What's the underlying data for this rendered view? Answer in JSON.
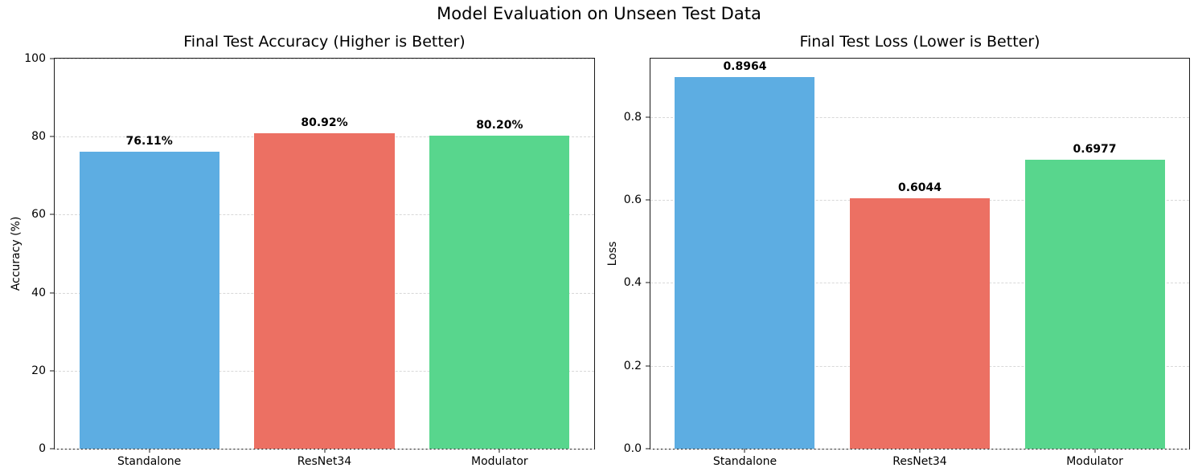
{
  "figure": {
    "title": "Model Evaluation on Unseen Test Data",
    "background": "#ffffff"
  },
  "palette": {
    "bar_colors": [
      "#5dade2",
      "#ec7063",
      "#58d68d"
    ],
    "grid_color": "#d8d8d8",
    "spine_color": "#1a1a1a",
    "text_color": "#000000"
  },
  "chart_data": [
    {
      "type": "bar",
      "title": "Final Test Accuracy (Higher is Better)",
      "categories": [
        "Standalone",
        "ResNet34",
        "Modulator"
      ],
      "values": [
        76.11,
        80.92,
        80.2
      ],
      "value_labels": [
        "76.11%",
        "80.92%",
        "80.20%"
      ],
      "xlabel": "",
      "ylabel": "Accuracy (%)",
      "ylim": [
        0,
        100
      ],
      "yticks": [
        0,
        20,
        40,
        60,
        80,
        100
      ],
      "ytick_labels": [
        "0",
        "20",
        "40",
        "60",
        "80",
        "100"
      ],
      "grid": "horizontal-dashed",
      "grid_below_bars": true,
      "legend": "none",
      "bar_colors": [
        "#5dade2",
        "#ec7063",
        "#58d68d"
      ]
    },
    {
      "type": "bar",
      "title": "Final Test Loss (Lower is Better)",
      "categories": [
        "Standalone",
        "ResNet34",
        "Modulator"
      ],
      "values": [
        0.8964,
        0.6044,
        0.6977
      ],
      "value_labels": [
        "0.8964",
        "0.6044",
        "0.6977"
      ],
      "xlabel": "",
      "ylabel": "Loss",
      "ylim": [
        0,
        0.941
      ],
      "yticks": [
        0.0,
        0.2,
        0.4,
        0.6,
        0.8
      ],
      "ytick_labels": [
        "0.0",
        "0.2",
        "0.4",
        "0.6",
        "0.8"
      ],
      "grid": "horizontal-dashed",
      "grid_below_bars": true,
      "legend": "none",
      "bar_colors": [
        "#5dade2",
        "#ec7063",
        "#58d68d"
      ]
    }
  ]
}
